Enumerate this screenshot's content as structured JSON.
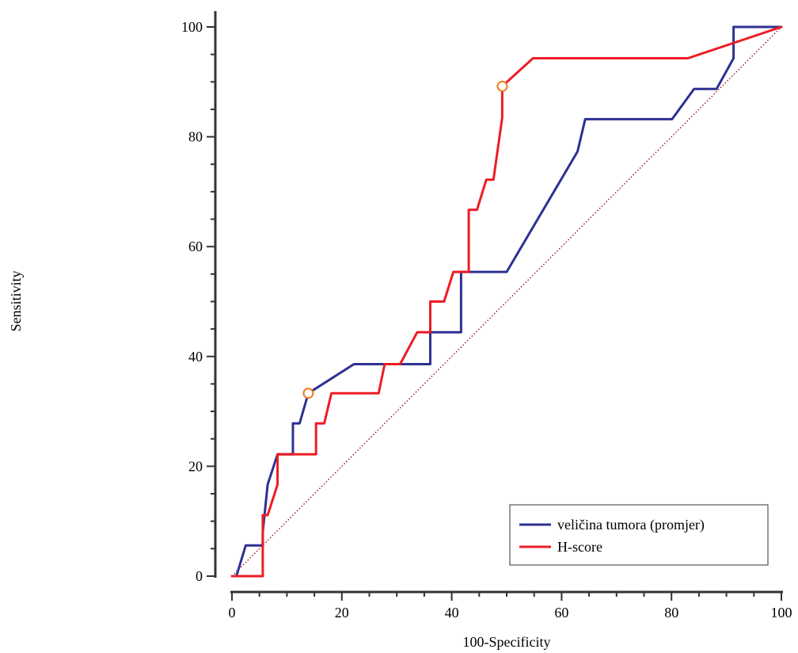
{
  "chart_data": {
    "type": "line",
    "title": "",
    "xlabel": "100-Specificity",
    "ylabel": "Sensitivity",
    "xlim": [
      0,
      100
    ],
    "ylim": [
      0,
      100
    ],
    "x_ticks": [
      0,
      20,
      40,
      60,
      80,
      100
    ],
    "y_ticks": [
      0,
      20,
      40,
      60,
      80,
      100
    ],
    "grid": false,
    "legend_position": "bottom-right",
    "diagonal_reference": true,
    "series": [
      {
        "name": "veličina tumora (promjer)",
        "color": "#2e3192",
        "points": [
          [
            0.8,
            0
          ],
          [
            2.5,
            5.6
          ],
          [
            5.6,
            5.6
          ],
          [
            5.6,
            8.0
          ],
          [
            6.5,
            16.7
          ],
          [
            8.3,
            22.2
          ],
          [
            11.1,
            22.2
          ],
          [
            11.1,
            27.8
          ],
          [
            12.3,
            27.8
          ],
          [
            13.9,
            33.3
          ],
          [
            22.2,
            38.6
          ],
          [
            36.1,
            38.6
          ],
          [
            36.1,
            44.4
          ],
          [
            41.7,
            44.4
          ],
          [
            41.7,
            55.4
          ],
          [
            50.0,
            55.4
          ],
          [
            62.9,
            77.3
          ],
          [
            64.3,
            83.2
          ],
          [
            80.1,
            83.2
          ],
          [
            84.1,
            88.7
          ],
          [
            88.2,
            88.7
          ],
          [
            91.3,
            94.3
          ],
          [
            91.3,
            100
          ],
          [
            100,
            100
          ]
        ],
        "markers": [
          [
            13.9,
            33.3
          ]
        ]
      },
      {
        "name": "H-score",
        "color": "#ee1c25",
        "points": [
          [
            0,
            0
          ],
          [
            5.6,
            0
          ],
          [
            5.6,
            11.1
          ],
          [
            6.5,
            11.1
          ],
          [
            8.3,
            16.7
          ],
          [
            8.3,
            22.2
          ],
          [
            15.3,
            22.2
          ],
          [
            15.3,
            27.8
          ],
          [
            16.8,
            27.8
          ],
          [
            18.1,
            33.3
          ],
          [
            26.7,
            33.3
          ],
          [
            27.8,
            38.6
          ],
          [
            30.6,
            38.6
          ],
          [
            33.7,
            44.4
          ],
          [
            36.1,
            44.4
          ],
          [
            36.1,
            50.0
          ],
          [
            38.6,
            50.0
          ],
          [
            40.3,
            55.4
          ],
          [
            43.1,
            55.4
          ],
          [
            43.1,
            66.7
          ],
          [
            44.6,
            66.7
          ],
          [
            46.3,
            72.2
          ],
          [
            47.6,
            72.2
          ],
          [
            49.2,
            83.5
          ],
          [
            49.2,
            89.2
          ],
          [
            54.8,
            94.3
          ],
          [
            83.0,
            94.3
          ],
          [
            100,
            100
          ]
        ],
        "markers": [
          [
            49.2,
            89.2
          ]
        ]
      }
    ]
  }
}
